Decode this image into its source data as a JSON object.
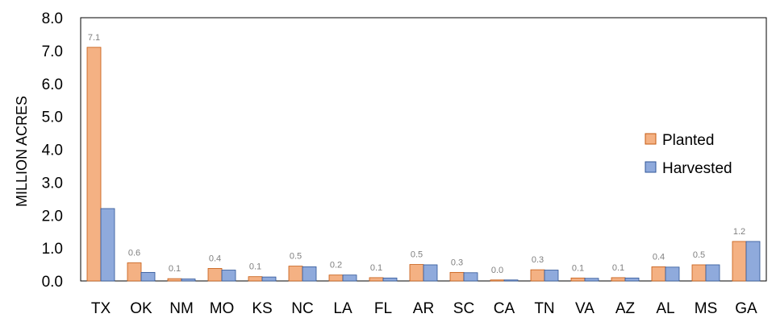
{
  "chart_data": {
    "type": "bar",
    "ylabel": "MILLION ACRES",
    "ylim": [
      0,
      8
    ],
    "yticks": [
      "0.0",
      "1.0",
      "2.0",
      "3.0",
      "4.0",
      "5.0",
      "6.0",
      "7.0",
      "8.0"
    ],
    "categories": [
      "TX",
      "OK",
      "NM",
      "MO",
      "KS",
      "NC",
      "LA",
      "FL",
      "AR",
      "SC",
      "CA",
      "TN",
      "VA",
      "AZ",
      "AL",
      "MS",
      "GA"
    ],
    "series": [
      {
        "name": "Planted",
        "color": "#F4B183",
        "stroke": "#C55A11",
        "values": [
          7.1,
          0.55,
          0.07,
          0.38,
          0.13,
          0.45,
          0.18,
          0.1,
          0.5,
          0.26,
          0.03,
          0.34,
          0.09,
          0.1,
          0.43,
          0.49,
          1.2
        ],
        "labels": [
          "7.1",
          "0.6",
          "0.1",
          "0.4",
          "0.1",
          "0.5",
          "0.2",
          "0.1",
          "0.5",
          "0.3",
          "0.0",
          "0.3",
          "0.1",
          "0.1",
          "0.4",
          "0.5",
          "1.2"
        ]
      },
      {
        "name": "Harvested",
        "color": "#8FAADC",
        "stroke": "#2F5597",
        "values": [
          2.2,
          0.26,
          0.06,
          0.33,
          0.12,
          0.43,
          0.18,
          0.09,
          0.49,
          0.25,
          0.03,
          0.33,
          0.08,
          0.09,
          0.42,
          0.49,
          1.2
        ]
      }
    ],
    "legend_position": "right",
    "grid": false
  }
}
